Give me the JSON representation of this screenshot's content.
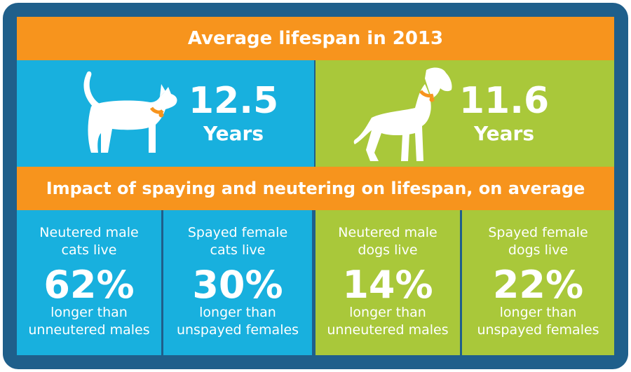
{
  "header": {
    "title": "Average lifespan in 2013"
  },
  "cat": {
    "value": "12.5",
    "unit": "Years"
  },
  "dog": {
    "value": "11.6",
    "unit": "Years"
  },
  "impact": {
    "title": "Impact of spaying and neutering on lifespan, on average",
    "cells": [
      {
        "line1": "Neutered male",
        "line2": "cats live",
        "percent": "62%",
        "line3": "longer than",
        "line4": "unneutered males"
      },
      {
        "line1": "Spayed female",
        "line2": "cats live",
        "percent": "30%",
        "line3": "longer than",
        "line4": "unspayed females"
      },
      {
        "line1": "Neutered male",
        "line2": "dogs live",
        "percent": "14%",
        "line3": "longer than",
        "line4": "unneutered males"
      },
      {
        "line1": "Spayed female",
        "line2": "dogs live",
        "percent": "22%",
        "line3": "longer than",
        "line4": "unspayed females"
      }
    ]
  },
  "colors": {
    "frame": "#1f5f8b",
    "orange": "#f7941d",
    "blue": "#18b0de",
    "green": "#a9c83a"
  }
}
